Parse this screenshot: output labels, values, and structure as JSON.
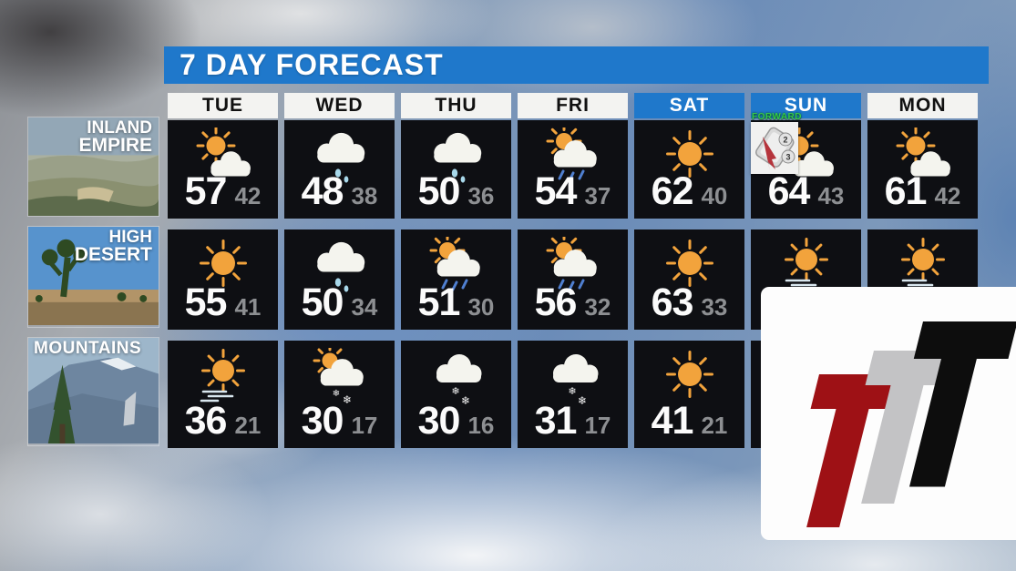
{
  "title": "7 DAY FORECAST",
  "days": [
    {
      "label": "TUE",
      "highlighted": false
    },
    {
      "label": "WED",
      "highlighted": false
    },
    {
      "label": "THU",
      "highlighted": false
    },
    {
      "label": "FRI",
      "highlighted": false
    },
    {
      "label": "SAT",
      "highlighted": true
    },
    {
      "label": "SUN",
      "highlighted": true
    },
    {
      "label": "MON",
      "highlighted": false
    }
  ],
  "regions": [
    {
      "label_line1": "INLAND",
      "label_line2": "EMPIRE",
      "photo": "inland-valley",
      "cells": [
        {
          "icon": "partly-cloudy",
          "high": "57",
          "low": "42"
        },
        {
          "icon": "rain",
          "high": "48",
          "low": "38"
        },
        {
          "icon": "rain",
          "high": "50",
          "low": "36"
        },
        {
          "icon": "sun-rain",
          "high": "54",
          "low": "37"
        },
        {
          "icon": "sunny",
          "high": "62",
          "low": "40"
        },
        {
          "icon": "partly-cloudy",
          "high": "64",
          "low": "43",
          "badge": true
        },
        {
          "icon": "partly-cloudy",
          "high": "61",
          "low": "42"
        }
      ]
    },
    {
      "label_line1": "HIGH",
      "label_line2": "DESERT",
      "photo": "joshua-tree",
      "cells": [
        {
          "icon": "sunny",
          "high": "55",
          "low": "41"
        },
        {
          "icon": "rain",
          "high": "50",
          "low": "34"
        },
        {
          "icon": "sun-rain",
          "high": "51",
          "low": "30"
        },
        {
          "icon": "sun-rain",
          "high": "56",
          "low": "32"
        },
        {
          "icon": "sunny",
          "high": "63",
          "low": "33"
        },
        {
          "icon": "sunny-windy",
          "high": "",
          "low": ""
        },
        {
          "icon": "sunny-windy",
          "high": "",
          "low": ""
        }
      ]
    },
    {
      "label_line1": "MOUNTAINS",
      "label_line2": "",
      "photo": "mountain-peak",
      "cells": [
        {
          "icon": "sunny-windy",
          "high": "36",
          "low": "21"
        },
        {
          "icon": "sun-snow",
          "high": "30",
          "low": "17"
        },
        {
          "icon": "cloud-snow",
          "high": "30",
          "low": "16"
        },
        {
          "icon": "cloud-snow",
          "high": "31",
          "low": "17"
        },
        {
          "icon": "sunny",
          "high": "41",
          "low": "21"
        },
        {
          "icon": "none",
          "high": "",
          "low": ""
        },
        {
          "icon": "none",
          "high": "",
          "low": ""
        }
      ]
    }
  ],
  "dst_badge": {
    "label": "FORWARD",
    "clock_numbers": [
      "2",
      "3"
    ]
  },
  "colors": {
    "banner_blue": "#1f78cb",
    "cell_black": "#0e0f13",
    "low_temp_gray": "#8d8f92",
    "sun_orange": "#f2a33c",
    "rain_blue": "#a8d8ea",
    "logo_red": "#9e1115",
    "logo_gray": "#c3c3c5",
    "logo_black": "#0d0d0d"
  }
}
